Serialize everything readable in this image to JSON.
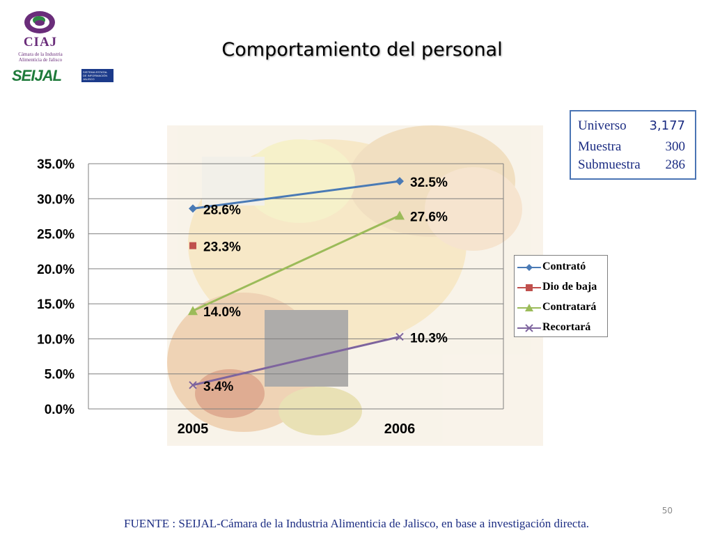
{
  "header": {
    "title": "Comportamiento del personal"
  },
  "logos": {
    "ciaj": {
      "name": "CIAJ",
      "subtitle_lines": [
        "Cámara de la Industria",
        "Alimenticia de Jalisco"
      ]
    },
    "seijal": {
      "name": "SEIJAL",
      "box_lines": [
        "SISTEMA ESTATAL",
        "DE INFORMACIÓN",
        "JALISCO"
      ]
    }
  },
  "info_box": {
    "rows": [
      {
        "label": "Universo",
        "value": "3,177"
      },
      {
        "label": "Muestra",
        "value": "300"
      },
      {
        "label": "Submuestra",
        "value": "286"
      }
    ]
  },
  "chart_data": {
    "type": "line",
    "x": [
      "2005",
      "2006"
    ],
    "ylim": [
      0,
      35
    ],
    "yticks": [
      "0.0%",
      "5.0%",
      "10.0%",
      "15.0%",
      "20.0%",
      "25.0%",
      "30.0%",
      "35.0%"
    ],
    "grid": true,
    "legend_position": "right",
    "series": [
      {
        "name": "Contrató",
        "values": [
          28.6,
          32.5
        ],
        "labels": [
          "28.6%",
          "32.5%"
        ],
        "color": "#4a7ab5",
        "marker": "diamond"
      },
      {
        "name": "Dio de baja",
        "values": [
          23.3,
          null
        ],
        "labels": [
          "23.3%",
          ""
        ],
        "color": "#c0504d",
        "marker": "square"
      },
      {
        "name": "Contratará",
        "values": [
          14.0,
          27.6
        ],
        "labels": [
          "14.0%",
          "27.6%"
        ],
        "color": "#9bbb59",
        "marker": "triangle"
      },
      {
        "name": "Recortará",
        "values": [
          3.4,
          10.3
        ],
        "labels": [
          "3.4%",
          "10.3%"
        ],
        "color": "#7e649e",
        "marker": "x"
      }
    ]
  },
  "footer": {
    "source": "FUENTE : SEIJAL-Cámara de la Industria Alimenticia de Jalisco,  en base a investigación directa."
  },
  "page_number": "50",
  "colors": {
    "title": "#000000",
    "footer_text": "#1b2c82",
    "box_border": "#4a74b4",
    "grid": "#7f7f7f"
  }
}
